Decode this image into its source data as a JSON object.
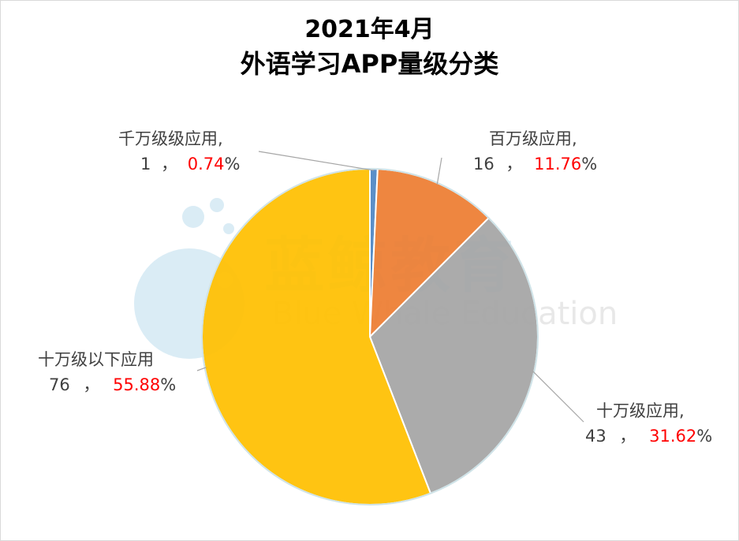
{
  "chart_data": {
    "type": "pie",
    "title": "2021年4月",
    "subtitle": "外语学习APP量级分类",
    "slices": [
      {
        "label": "千万级级应用,",
        "value": 1,
        "percent": "0.74",
        "color": "#4f87c4"
      },
      {
        "label": "百万级应用,",
        "value": 16,
        "percent": "11.76",
        "color": "#ed7d31"
      },
      {
        "label": "十万级应用,",
        "value": 43,
        "percent": "31.62",
        "color": "#a5a5a5"
      },
      {
        "label": "十万级以下应用",
        "value": 76,
        "percent": "55.88",
        "color": "#ffc000"
      }
    ],
    "value_separator": "，",
    "percent_sign": "%",
    "watermark": {
      "cn": "蓝鲸教育",
      "en": "Blue Whale Education"
    }
  }
}
